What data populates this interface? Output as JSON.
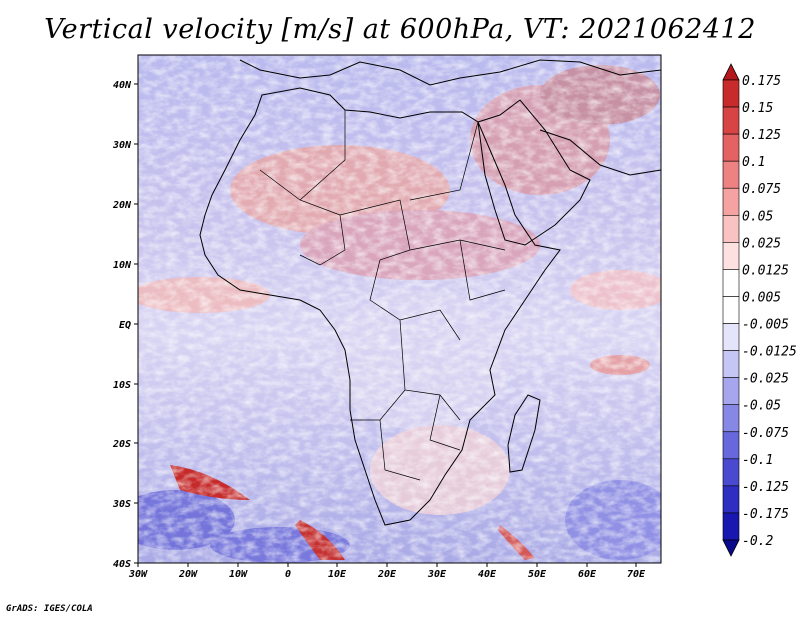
{
  "title": "Vertical velocity [m/s] at 600hPa, VT: 2021062412",
  "credit": "GrADS: IGES/COLA",
  "map": {
    "lat_labels": [
      "40N",
      "30N",
      "20N",
      "10N",
      "EQ",
      "10S",
      "20S",
      "30S",
      "40S"
    ],
    "lon_labels": [
      "30W",
      "20W",
      "10W",
      "0",
      "10E",
      "20E",
      "30E",
      "40E",
      "50E",
      "60E",
      "70E"
    ],
    "lon_range": [
      -30,
      75
    ],
    "lat_range": [
      -40,
      45
    ]
  },
  "colorbar": {
    "labels": [
      "0.175",
      "0.15",
      "0.125",
      "0.1",
      "0.075",
      "0.05",
      "0.025",
      "0.0125",
      "0.005",
      "-0.005",
      "-0.0125",
      "-0.025",
      "-0.05",
      "-0.075",
      "-0.1",
      "-0.125",
      "-0.175",
      "-0.2"
    ],
    "colors": [
      "#b3191c",
      "#c72b2b",
      "#d84444",
      "#e56262",
      "#ee8282",
      "#f5a2a2",
      "#fac3c3",
      "#fde0e0",
      "#ffffff",
      "#ffffff",
      "#e4e4fb",
      "#c6c6f5",
      "#a6a6ee",
      "#8787e6",
      "#6868dc",
      "#4a4ad0",
      "#2e2ec2",
      "#1818b0",
      "#0a0a8c"
    ]
  },
  "chart_data": {
    "type": "heatmap",
    "title": "Vertical velocity [m/s] at 600hPa, VT: 2021062412",
    "variable": "vertical velocity",
    "units": "m/s",
    "level": "600hPa",
    "valid_time": "2021062412",
    "x_ticks": [
      "30W",
      "20W",
      "10W",
      "0",
      "10E",
      "20E",
      "30E",
      "40E",
      "50E",
      "60E",
      "70E"
    ],
    "y_ticks": [
      "40N",
      "30N",
      "20N",
      "10N",
      "EQ",
      "10S",
      "20S",
      "30S",
      "40S"
    ],
    "color_levels": [
      0.175,
      0.15,
      0.125,
      0.1,
      0.075,
      0.05,
      0.025,
      0.0125,
      0.005,
      -0.005,
      -0.0125,
      -0.025,
      -0.05,
      -0.075,
      -0.1,
      -0.125,
      -0.175,
      -0.2
    ]
  }
}
